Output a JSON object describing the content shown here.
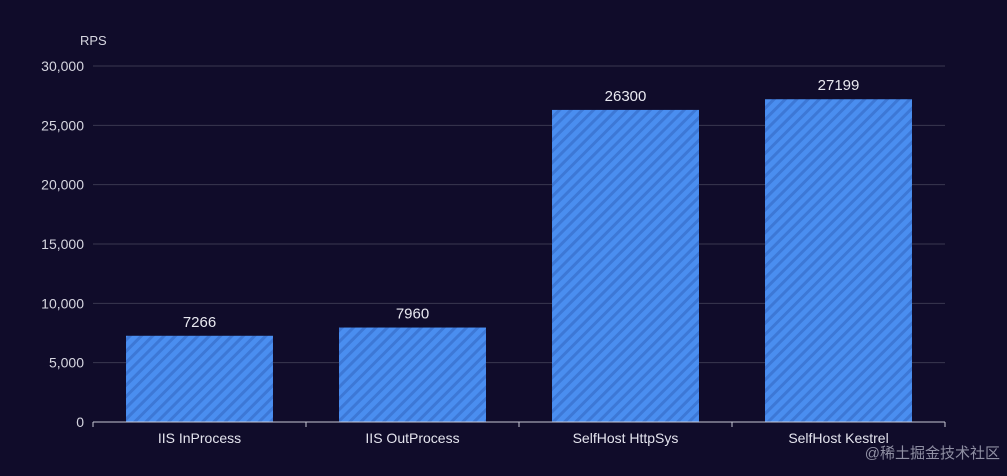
{
  "chart_data": {
    "type": "bar",
    "categories": [
      "IIS InProcess",
      "IIS OutProcess",
      "SelfHost HttpSys",
      "SelfHost Kestrel"
    ],
    "values": [
      7266,
      7960,
      26300,
      27199
    ],
    "ylabel": "RPS",
    "ylim": [
      0,
      30000
    ],
    "yticks": [
      "0",
      "5,000",
      "10,000",
      "15,000",
      "20,000",
      "25,000",
      "30,000"
    ],
    "ytick_values": [
      0,
      5000,
      10000,
      15000,
      20000,
      25000,
      30000
    ],
    "grid": true,
    "legend": "none",
    "bar_color": "#4a8ef0",
    "bar_pattern": "diagonal-stripes"
  },
  "watermark": "@稀土掘金技术社区",
  "colors": {
    "background": "#100c2a",
    "bar": "#4a8ef0",
    "bar_stripe": "#3d78d6"
  }
}
